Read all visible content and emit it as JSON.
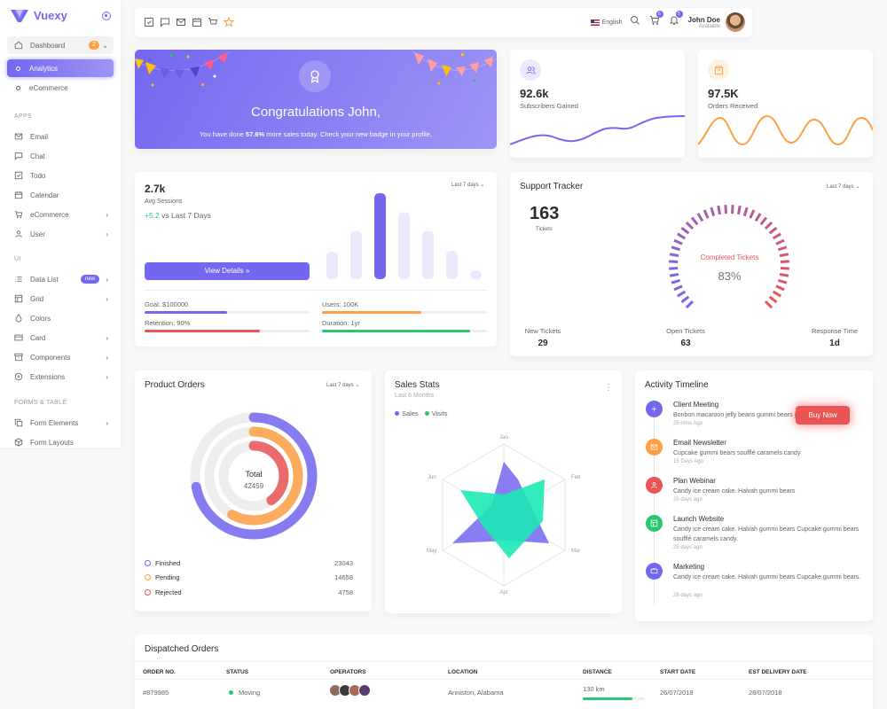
{
  "brand": {
    "name": "Vuexy"
  },
  "sidebar": {
    "dashboard": {
      "label": "Dashboard",
      "badge": "2"
    },
    "analytics": "Analytics",
    "ecommerce_sub": "eCommerce",
    "apps_header": "APPS",
    "ui_header": "UI",
    "forms_header": "FORMS & TABLE",
    "items": [
      {
        "label": "Email"
      },
      {
        "label": "Chat"
      },
      {
        "label": "Todo"
      },
      {
        "label": "Calendar"
      },
      {
        "label": "eCommerce"
      },
      {
        "label": "User"
      },
      {
        "label": "Data List",
        "badge": "new"
      },
      {
        "label": "Grid"
      },
      {
        "label": "Colors"
      },
      {
        "label": "Card"
      },
      {
        "label": "Components"
      },
      {
        "label": "Extensions"
      },
      {
        "label": "Form Elements"
      },
      {
        "label": "Form Layouts"
      }
    ]
  },
  "topbar": {
    "language": "English",
    "cart_count": "6",
    "notif_count": "5",
    "user_name": "John Doe",
    "user_status": "Available"
  },
  "congrats": {
    "title": "Congratulations John,",
    "sub_pre": "You have done ",
    "sub_bold": "57.6%",
    "sub_post": " more sales today. Check your new badge in your profile."
  },
  "subscribers": {
    "value": "92.6k",
    "label": "Subscribers Gained"
  },
  "orders": {
    "value": "97.5K",
    "label": "Orders Received"
  },
  "sessions": {
    "value": "2.7k",
    "label": "Avg Sessions",
    "delta": "+5.2",
    "delta_text": " vs Last 7 Days",
    "dropdown": "Last 7 days",
    "button": "View Details",
    "bars": [
      0.32,
      0.56,
      1.0,
      0.78,
      0.56,
      0.33,
      0.1
    ],
    "goal": "Goal: $100000",
    "users": "Users: 100K",
    "retention": "Retention: 90%",
    "duration": "Duration: 1yr",
    "goal_pct": 50,
    "users_pct": 60,
    "retention_pct": 70,
    "duration_pct": 90
  },
  "support": {
    "title": "Support Tracker",
    "dropdown": "Last 7 days",
    "tickets": "163",
    "tickets_label": "Tickets",
    "gauge_label": "Completed Tickets",
    "gauge_pct": "83%",
    "gauge_value": 0.83,
    "new_label": "New Tickets",
    "new_value": "29",
    "open_label": "Open Tickets",
    "open_value": "63",
    "resp_label": "Response Time",
    "resp_value": "1d"
  },
  "product_orders": {
    "title": "Product Orders",
    "dropdown": "Last 7 days",
    "total_label": "Total",
    "total_value": "42459",
    "legend": [
      {
        "label": "Finished",
        "value": "23043",
        "color": "#7367f0",
        "fill": 0.72
      },
      {
        "label": "Pending",
        "value": "14658",
        "color": "#ff9f43",
        "fill": 0.58
      },
      {
        "label": "Rejected",
        "value": "4758",
        "color": "#ea5455",
        "fill": 0.4
      }
    ]
  },
  "sales_stats": {
    "title": "Sales Stats",
    "subtitle": "Last 6 Months",
    "sales_label": "Sales",
    "visits_label": "Visits",
    "axes": [
      "Jan",
      "Feb",
      "Mar",
      "Apr",
      "May",
      "Jun"
    ]
  },
  "timeline": {
    "title": "Activity Timeline",
    "buy_button": "Buy Now",
    "items": [
      {
        "title": "Client Meeting",
        "desc": "Bonbon macaroon jelly beans gummi bears jelly lollipop apple",
        "time": "25 mins Ago"
      },
      {
        "title": "Email Newsletter",
        "desc": "Cupcake gummi bears soufflé caramels candy",
        "time": "15 Days Ago"
      },
      {
        "title": "Plan Webinar",
        "desc": "Candy ice cream cake. Halvah gummi bears",
        "time": "20 days ago"
      },
      {
        "title": "Launch Website",
        "desc": "Candy ice cream cake. Halvah gummi bears Cupcake gummi bears soufflé caramels candy.",
        "time": "25 days ago"
      },
      {
        "title": "Marketing",
        "desc": "Candy ice cream cake. Halvah gummi bears Cupcake gummi bears.",
        "time": "28 days ago"
      }
    ]
  },
  "dispatched": {
    "title": "Dispatched Orders",
    "headers": [
      "ORDER NO.",
      "STATUS",
      "OPERATORS",
      "LOCATION",
      "DISTANCE",
      "START DATE",
      "EST DELIVERY DATE"
    ],
    "row": {
      "order": "#879985",
      "status": "Moving",
      "location": "Anniston, Alabama",
      "distance": "130 km",
      "start": "26/07/2018",
      "delivery": "28/07/2018",
      "distance_pct": 80
    }
  },
  "colors": {
    "primary": "#7367f0",
    "success": "#28c76f",
    "warning": "#ff9f43",
    "danger": "#ea5455"
  }
}
